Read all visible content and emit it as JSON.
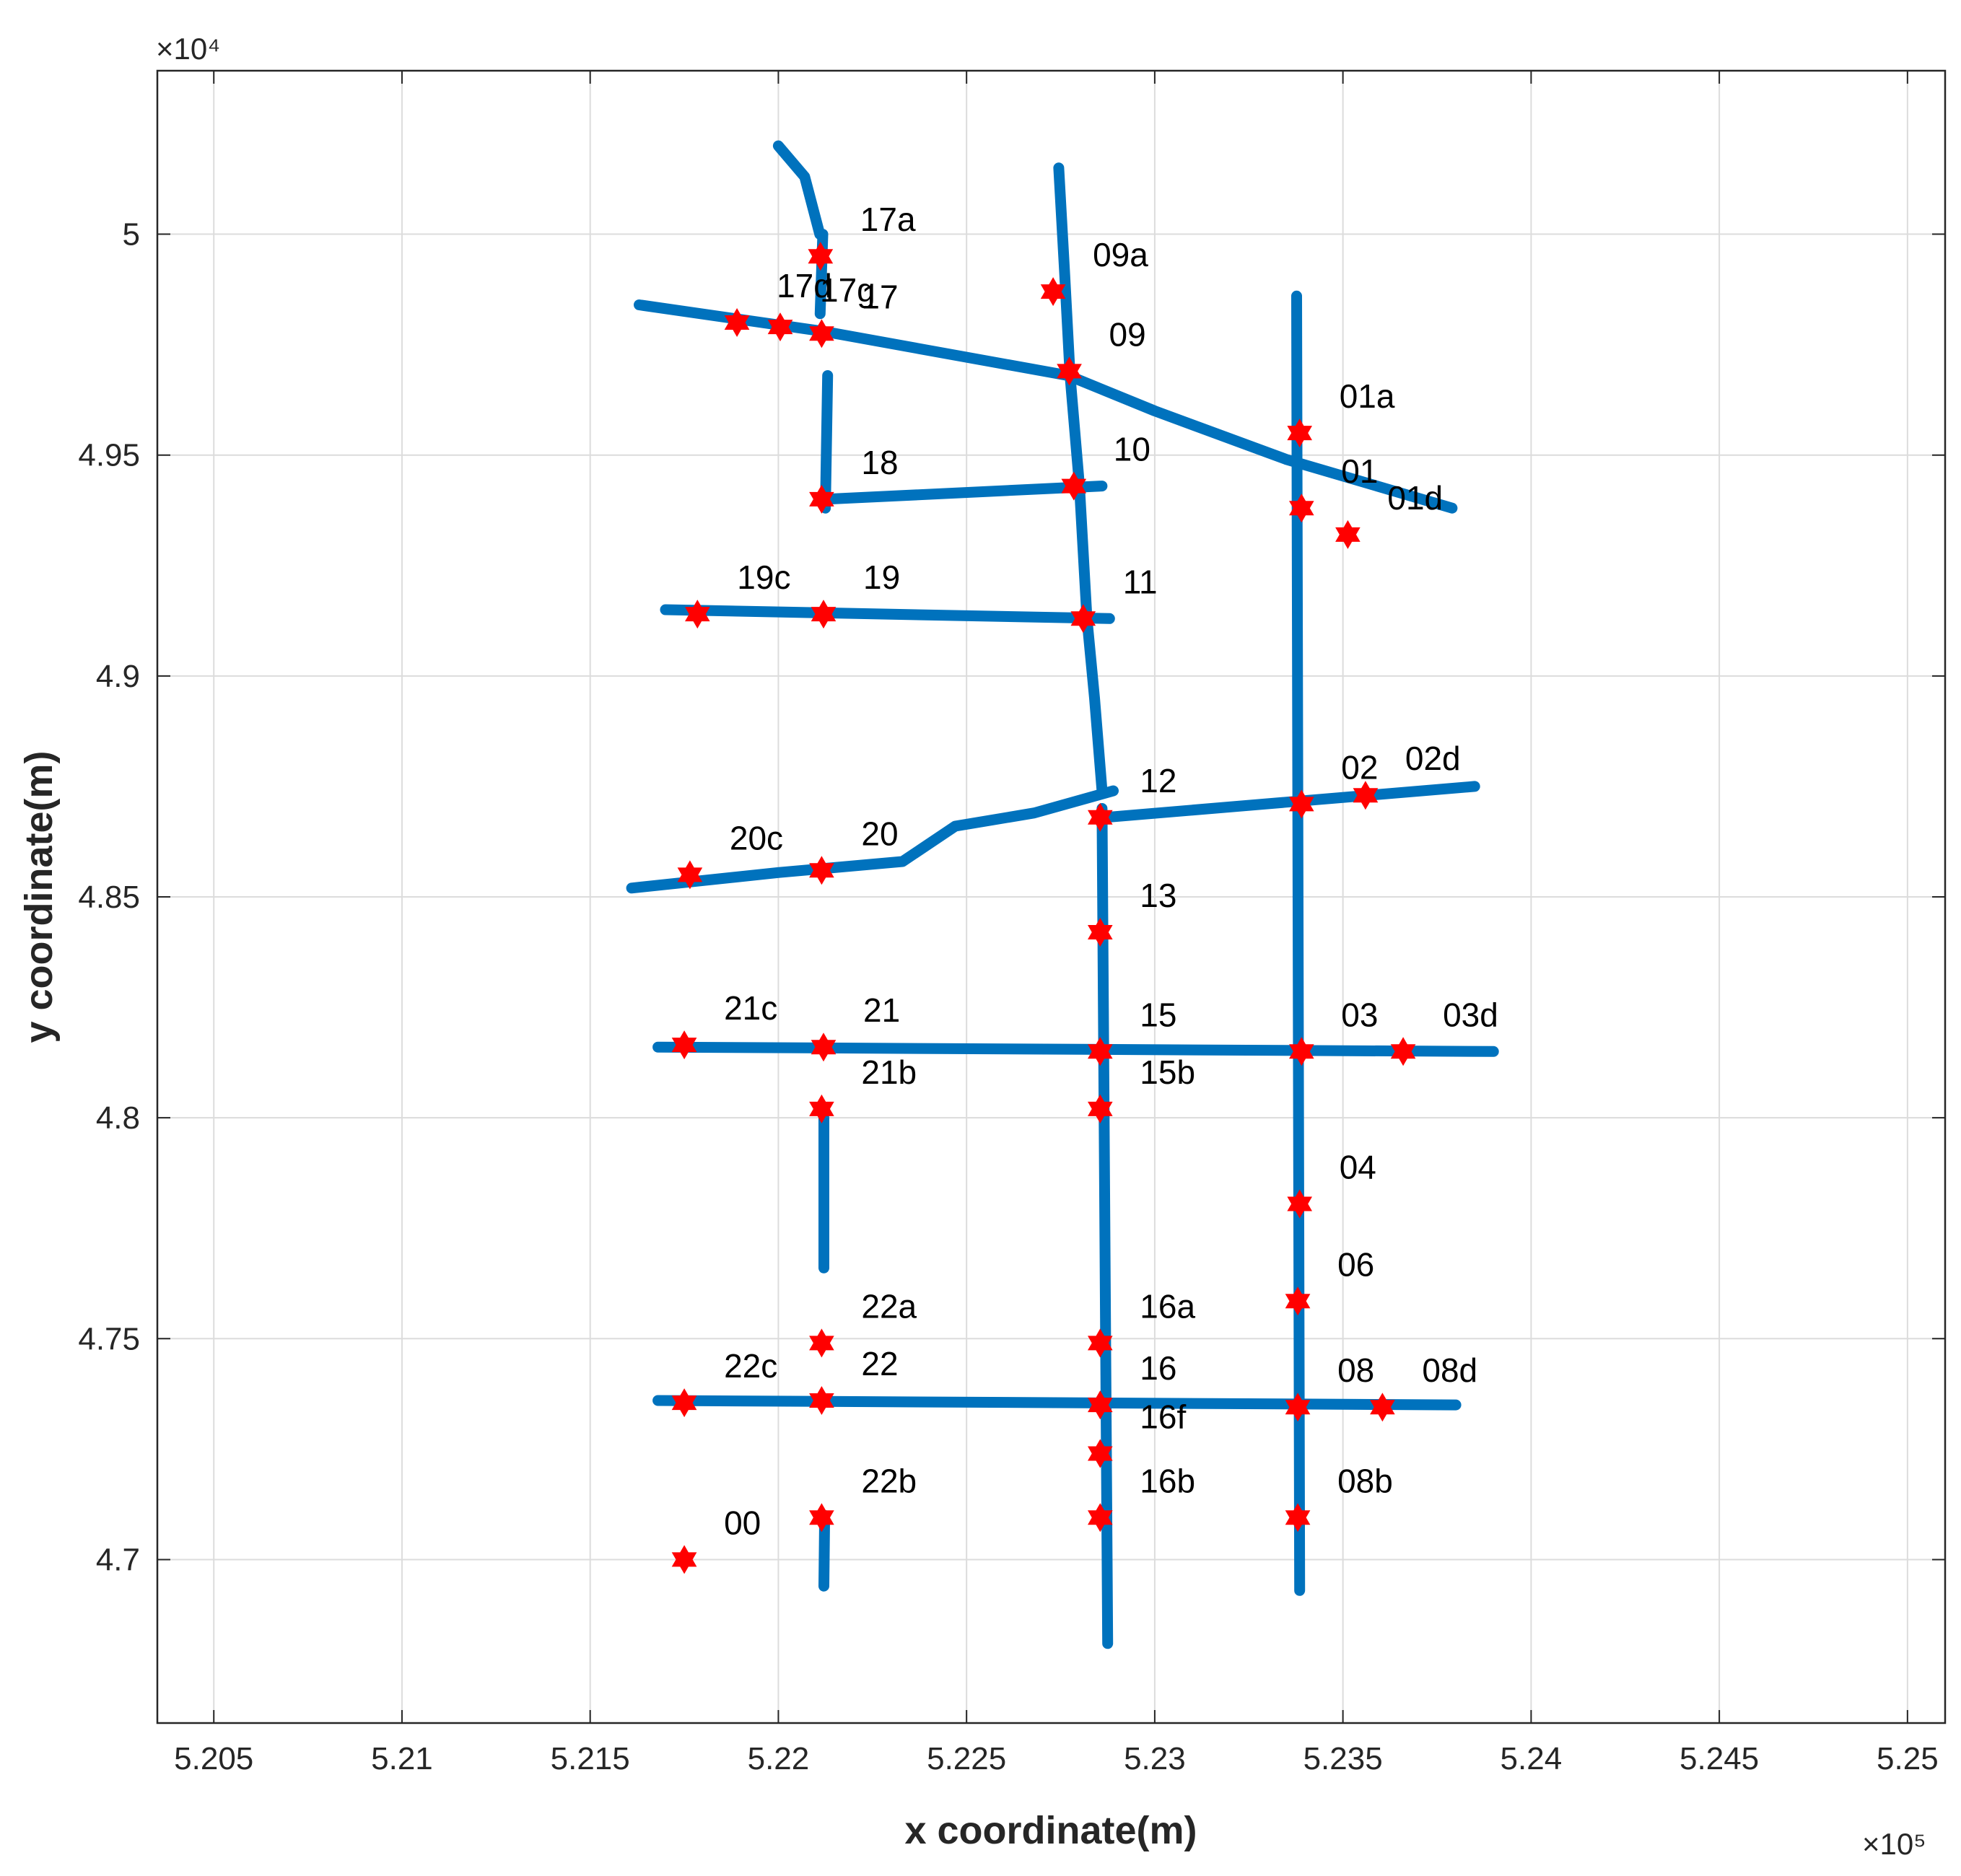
{
  "chart_data": {
    "type": "scatter",
    "title": "",
    "xlabel": "x coordinate(m)",
    "ylabel": "y coordinate(m)",
    "x_exponent_label": "×10⁵",
    "y_exponent_label": "×10⁴",
    "xlim": [
      520350,
      525100
    ],
    "ylim": [
      46630,
      50370
    ],
    "x_ticks": [
      520500,
      521000,
      521500,
      522000,
      522500,
      523000,
      523500,
      524000,
      524500,
      525000
    ],
    "x_tick_labels": [
      "5.205",
      "5.21",
      "5.215",
      "5.22",
      "5.225",
      "5.23",
      "5.235",
      "5.24",
      "5.245",
      "5.25"
    ],
    "y_ticks": [
      47000,
      47500,
      48000,
      48500,
      49000,
      49500,
      50000
    ],
    "y_tick_labels": [
      "4.7",
      "4.75",
      "4.8",
      "4.85",
      "4.9",
      "4.95",
      "5"
    ],
    "grid": true,
    "colors": {
      "track": "#0072BD",
      "marker": "#FF0000",
      "grid": "#DCDCDC"
    },
    "series": [
      {
        "name": "trajectory",
        "kind": "track",
        "segments": [
          [
            [
              522125,
              49380
            ],
            [
              522131,
              49680
            ]
          ],
          [
            [
              522111,
              49820
            ],
            [
              522118,
              50000
            ]
          ],
          [
            [
              522000,
              50200
            ],
            [
              522070,
              50130
            ],
            [
              522110,
              50000
            ]
          ],
          [
            [
              521630,
              49840
            ],
            [
              522120,
              49780
            ],
            [
              522770,
              49680
            ],
            [
              523000,
              49600
            ],
            [
              523350,
              49490
            ],
            [
              523790,
              49380
            ]
          ],
          [
            [
              522745,
              50150
            ],
            [
              522760,
              49920
            ],
            [
              522775,
              49680
            ],
            [
              522800,
              49430
            ],
            [
              522820,
              49130
            ],
            [
              522840,
              48950
            ],
            [
              522860,
              48740
            ]
          ],
          [
            [
              522860,
              48700
            ],
            [
              522875,
              46810
            ]
          ],
          [
            [
              523377,
              49860
            ],
            [
              523385,
              46930
            ]
          ],
          [
            [
              522121,
              47660
            ],
            [
              522121,
              48000
            ]
          ],
          [
            [
              522121,
              46940
            ],
            [
              522123,
              47100
            ]
          ],
          [
            [
              522125,
              49400
            ],
            [
              522860,
              49430
            ]
          ],
          [
            [
              521700,
              49150
            ],
            [
              522880,
              49130
            ]
          ],
          [
            [
              521610,
              48520
            ],
            [
              522000,
              48555
            ],
            [
              522330,
              48580
            ],
            [
              522470,
              48660
            ],
            [
              522680,
              48690
            ],
            [
              522890,
              48740
            ]
          ],
          [
            [
              522870,
              48680
            ],
            [
              523850,
              48750
            ]
          ],
          [
            [
              521680,
              48160
            ],
            [
              523900,
              48150
            ]
          ],
          [
            [
              521680,
              47360
            ],
            [
              523800,
              47350
            ]
          ]
        ]
      },
      {
        "name": "stations",
        "kind": "marker",
        "points": [
          {
            "label": "17a",
            "x": 522112,
            "y": 49950
          },
          {
            "label": "17d",
            "x": 521890,
            "y": 49800
          },
          {
            "label": "17g",
            "x": 522005,
            "y": 49790
          },
          {
            "label": "17",
            "x": 522115,
            "y": 49775
          },
          {
            "label": "09a",
            "x": 522730,
            "y": 49870
          },
          {
            "label": "09",
            "x": 522773,
            "y": 49690
          },
          {
            "label": "01a",
            "x": 523385,
            "y": 49550
          },
          {
            "label": "01",
            "x": 523390,
            "y": 49380
          },
          {
            "label": "01d",
            "x": 523513,
            "y": 49320
          },
          {
            "label": "18",
            "x": 522115,
            "y": 49400
          },
          {
            "label": "10",
            "x": 522785,
            "y": 49430
          },
          {
            "label": "19c",
            "x": 521785,
            "y": 49140
          },
          {
            "label": "19",
            "x": 522120,
            "y": 49140
          },
          {
            "label": "11",
            "x": 522810,
            "y": 49130
          },
          {
            "label": "12",
            "x": 522855,
            "y": 48680
          },
          {
            "label": "02",
            "x": 523390,
            "y": 48710
          },
          {
            "label": "02d",
            "x": 523560,
            "y": 48730
          },
          {
            "label": "20c",
            "x": 521765,
            "y": 48550
          },
          {
            "label": "20",
            "x": 522115,
            "y": 48560
          },
          {
            "label": "13",
            "x": 522855,
            "y": 48420
          },
          {
            "label": "21c",
            "x": 521750,
            "y": 48165
          },
          {
            "label": "21",
            "x": 522120,
            "y": 48160
          },
          {
            "label": "15",
            "x": 522855,
            "y": 48150
          },
          {
            "label": "03",
            "x": 523390,
            "y": 48150
          },
          {
            "label": "03d",
            "x": 523660,
            "y": 48150
          },
          {
            "label": "21b",
            "x": 522115,
            "y": 48020
          },
          {
            "label": "15b",
            "x": 522855,
            "y": 48020
          },
          {
            "label": "04",
            "x": 523385,
            "y": 47805
          },
          {
            "label": "06",
            "x": 523380,
            "y": 47585
          },
          {
            "label": "22a",
            "x": 522115,
            "y": 47490
          },
          {
            "label": "16a",
            "x": 522855,
            "y": 47490
          },
          {
            "label": "22c",
            "x": 521750,
            "y": 47355
          },
          {
            "label": "22",
            "x": 522115,
            "y": 47360
          },
          {
            "label": "16",
            "x": 522855,
            "y": 47350
          },
          {
            "label": "08",
            "x": 523380,
            "y": 47345
          },
          {
            "label": "08d",
            "x": 523605,
            "y": 47345
          },
          {
            "label": "16f",
            "x": 522855,
            "y": 47240
          },
          {
            "label": "22b",
            "x": 522115,
            "y": 47095
          },
          {
            "label": "16b",
            "x": 522855,
            "y": 47095
          },
          {
            "label": "08b",
            "x": 523380,
            "y": 47095
          },
          {
            "label": "00",
            "x": 521750,
            "y": 47000
          }
        ]
      }
    ]
  }
}
